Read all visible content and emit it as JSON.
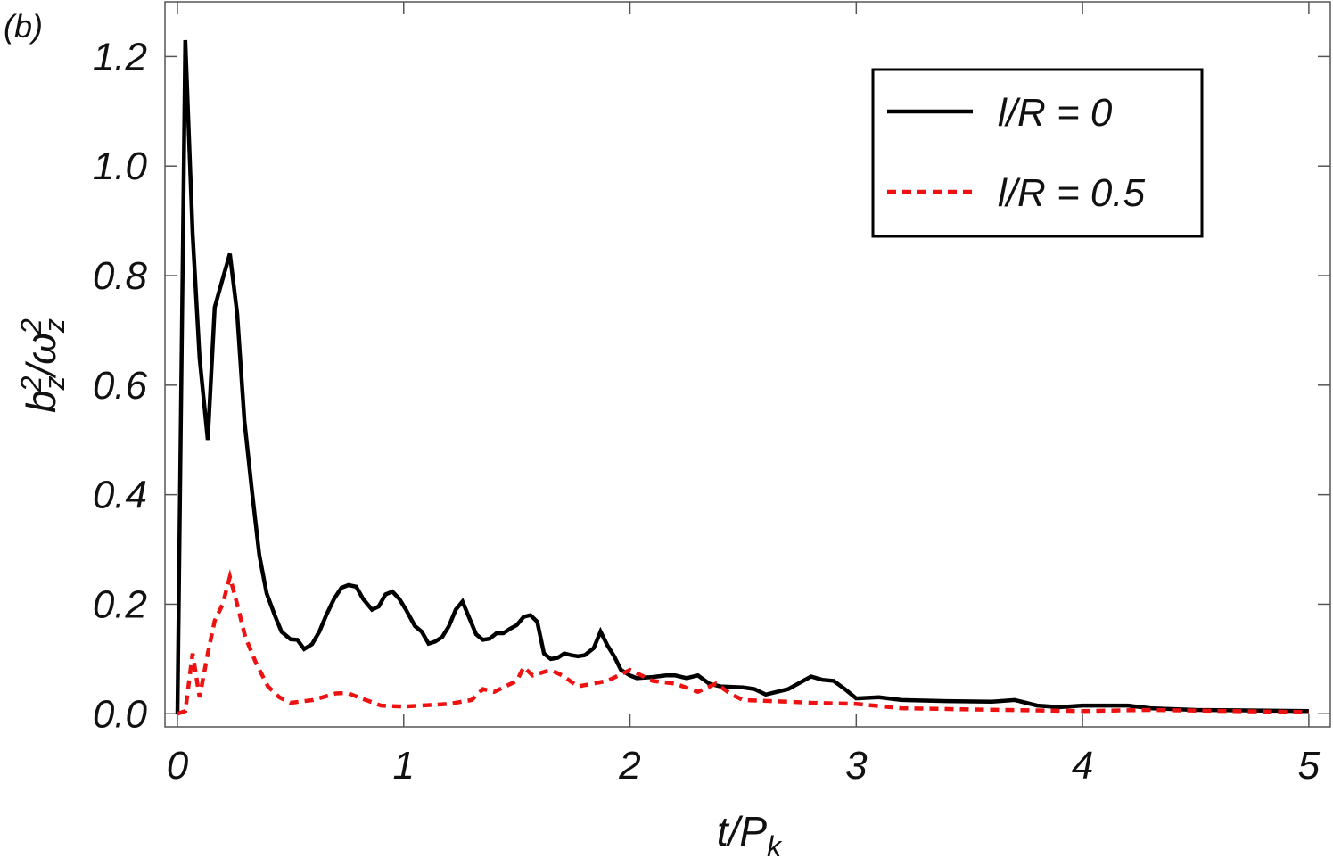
{
  "chart_data": {
    "type": "line",
    "title": "(b)",
    "x_label": [
      "t/P",
      "k"
    ],
    "y_label": [
      "b",
      "z",
      "2",
      "/ω",
      "z",
      "2"
    ],
    "xlim": [
      -0.055,
      5.095
    ],
    "ylim": [
      -0.024,
      1.3
    ],
    "xticks": [
      0,
      1,
      2,
      3,
      4,
      5
    ],
    "yticks": [
      {
        "value": 0,
        "label": "0.0"
      },
      0.2,
      0.4,
      0.6,
      0.8,
      {
        "value": 1,
        "label": "1.0"
      },
      1.2
    ],
    "legend": "top-right",
    "series": [
      {
        "name": "l/R = 0",
        "color": "#000000",
        "dash": false,
        "x": [
          0,
          0.035,
          0.067,
          0.098,
          0.134,
          0.165,
          0.197,
          0.232,
          0.264,
          0.296,
          0.33,
          0.362,
          0.394,
          0.43,
          0.46,
          0.5,
          0.53,
          0.56,
          0.595,
          0.627,
          0.658,
          0.693,
          0.725,
          0.756,
          0.79,
          0.82,
          0.86,
          0.89,
          0.92,
          0.95,
          0.98,
          1.01,
          1.05,
          1.08,
          1.11,
          1.14,
          1.17,
          1.2,
          1.23,
          1.26,
          1.29,
          1.32,
          1.35,
          1.38,
          1.41,
          1.44,
          1.47,
          1.5,
          1.53,
          1.56,
          1.59,
          1.62,
          1.65,
          1.68,
          1.71,
          1.74,
          1.77,
          1.8,
          1.84,
          1.87,
          1.9,
          1.93,
          1.96,
          2.0,
          2.03,
          2.1,
          2.16,
          2.2,
          2.25,
          2.3,
          2.35,
          2.4,
          2.5,
          2.55,
          2.6,
          2.7,
          2.8,
          2.85,
          2.9,
          2.95,
          3.0,
          3.1,
          3.2,
          3.4,
          3.6,
          3.7,
          3.8,
          3.9,
          4.0,
          4.2,
          4.3,
          4.5,
          5.0
        ],
        "values": [
          0,
          1.23,
          0.877,
          0.65,
          0.5,
          0.742,
          0.79,
          0.84,
          0.73,
          0.535,
          0.405,
          0.29,
          0.22,
          0.18,
          0.15,
          0.136,
          0.135,
          0.118,
          0.127,
          0.15,
          0.18,
          0.21,
          0.23,
          0.235,
          0.232,
          0.21,
          0.19,
          0.196,
          0.218,
          0.223,
          0.21,
          0.19,
          0.16,
          0.15,
          0.128,
          0.132,
          0.14,
          0.16,
          0.19,
          0.205,
          0.175,
          0.145,
          0.135,
          0.137,
          0.147,
          0.147,
          0.155,
          0.162,
          0.177,
          0.18,
          0.168,
          0.11,
          0.1,
          0.102,
          0.11,
          0.107,
          0.105,
          0.107,
          0.12,
          0.15,
          0.125,
          0.105,
          0.08,
          0.07,
          0.065,
          0.067,
          0.07,
          0.07,
          0.065,
          0.07,
          0.055,
          0.05,
          0.048,
          0.045,
          0.035,
          0.045,
          0.068,
          0.062,
          0.06,
          0.045,
          0.028,
          0.03,
          0.025,
          0.023,
          0.022,
          0.025,
          0.015,
          0.012,
          0.015,
          0.015,
          0.01,
          0.007,
          0.005
        ]
      },
      {
        "name": "l/R = 0.5",
        "color": "#ee1111",
        "dash": true,
        "x": [
          0,
          0.035,
          0.067,
          0.098,
          0.134,
          0.165,
          0.2,
          0.232,
          0.264,
          0.3,
          0.35,
          0.4,
          0.45,
          0.5,
          0.6,
          0.7,
          0.75,
          0.8,
          0.9,
          1.0,
          1.2,
          1.3,
          1.35,
          1.4,
          1.5,
          1.53,
          1.57,
          1.65,
          1.7,
          1.77,
          1.9,
          2.0,
          2.1,
          2.2,
          2.3,
          2.38,
          2.45,
          2.5,
          2.7,
          2.8,
          3.0,
          3.2,
          3.5,
          4.0,
          4.3,
          5.0
        ],
        "values": [
          0,
          0.005,
          0.11,
          0.03,
          0.11,
          0.17,
          0.2,
          0.25,
          0.2,
          0.14,
          0.09,
          0.05,
          0.03,
          0.02,
          0.025,
          0.037,
          0.038,
          0.03,
          0.015,
          0.013,
          0.018,
          0.025,
          0.045,
          0.04,
          0.06,
          0.085,
          0.07,
          0.08,
          0.07,
          0.05,
          0.06,
          0.08,
          0.06,
          0.055,
          0.04,
          0.055,
          0.035,
          0.025,
          0.022,
          0.02,
          0.018,
          0.01,
          0.008,
          0.005,
          0.007,
          0.003
        ]
      }
    ]
  }
}
